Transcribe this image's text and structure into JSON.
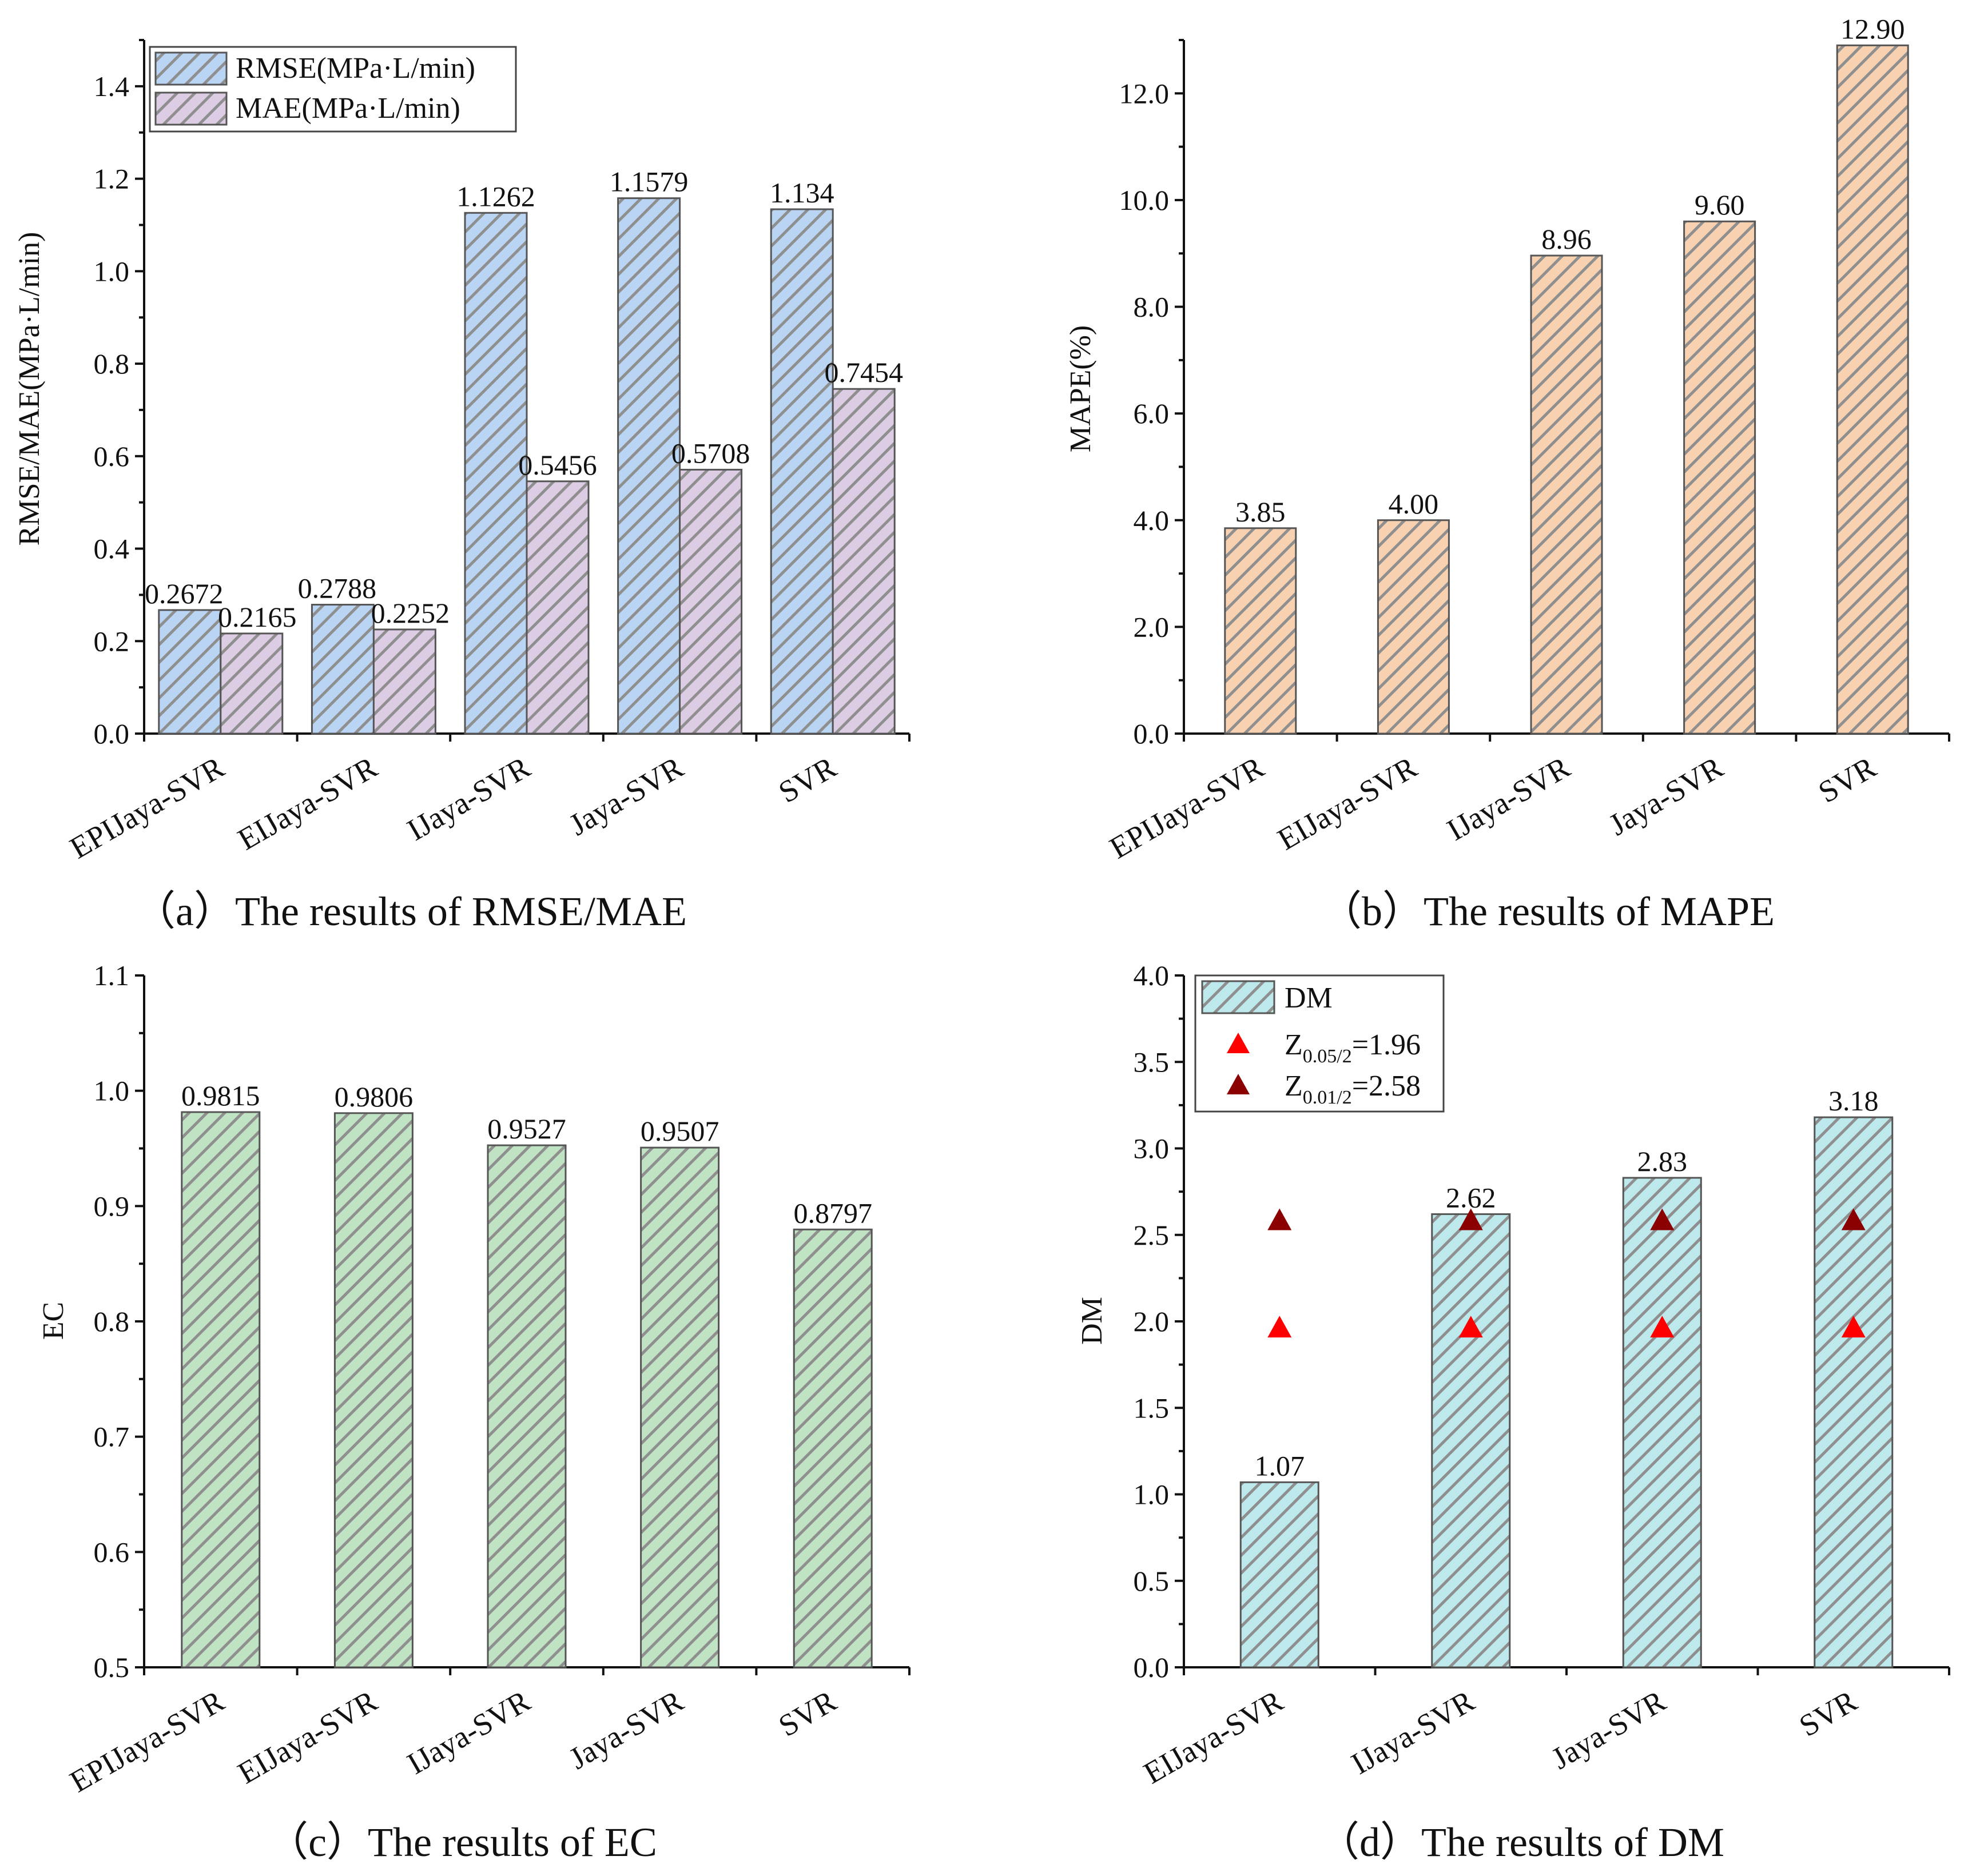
{
  "colors": {
    "rmse": "#bad4f3",
    "mae": "#ddcde4",
    "mape": "#f8d1b1",
    "ec": "#bfe3c3",
    "dm": "#bde9ec",
    "hatch": "#8f8f8f",
    "tri_005": "#ff0000",
    "tri_001": "#8b0000"
  },
  "chart_data": [
    {
      "id": "a",
      "type": "bar",
      "caption": "（a）The results of RMSE/MAE",
      "ylabel": "RMSE/MAE(MPa·L/min)",
      "xlabel": "",
      "ylim": [
        0,
        1.5
      ],
      "yticks": [
        "0.0",
        "0.2",
        "0.4",
        "0.6",
        "0.8",
        "1.0",
        "1.2",
        "1.4"
      ],
      "categories": [
        "EPIJaya-SVR",
        "EIJaya-SVR",
        "IJaya-SVR",
        "Jaya-SVR",
        "SVR"
      ],
      "series": [
        {
          "name": "RMSE(MPa·L/min)",
          "values": [
            0.2672,
            0.2788,
            1.1262,
            1.1579,
            1.134
          ],
          "labels": [
            "0.2672",
            "0.2788",
            "1.1262",
            "1.1579",
            "1.134"
          ]
        },
        {
          "name": "MAE(MPa·L/min)",
          "values": [
            0.2165,
            0.2252,
            0.5456,
            0.5708,
            0.7454
          ],
          "labels": [
            "0.2165",
            "0.2252",
            "0.5456",
            "0.5708",
            "0.7454"
          ]
        }
      ],
      "legend": "top-left",
      "grid": false
    },
    {
      "id": "b",
      "type": "bar",
      "caption": "（b）The results of MAPE",
      "ylabel": "MAPE(%)",
      "xlabel": "",
      "ylim": [
        0,
        13
      ],
      "yticks": [
        "0.0",
        "2.0",
        "4.0",
        "6.0",
        "8.0",
        "10.0",
        "12.0"
      ],
      "categories": [
        "EPIJaya-SVR",
        "EIJaya-SVR",
        "IJaya-SVR",
        "Jaya-SVR",
        "SVR"
      ],
      "series": [
        {
          "name": "MAPE",
          "values": [
            3.85,
            4.0,
            8.96,
            9.6,
            12.9
          ],
          "labels": [
            "3.85",
            "4.00",
            "8.96",
            "9.60",
            "12.90"
          ]
        }
      ],
      "grid": false
    },
    {
      "id": "c",
      "type": "bar",
      "caption": "（c）The results of EC",
      "ylabel": "EC",
      "xlabel": "",
      "ylim": [
        0.5,
        1.1
      ],
      "yticks": [
        "0.5",
        "0.6",
        "0.7",
        "0.8",
        "0.9",
        "1.0",
        "1.1"
      ],
      "categories": [
        "EPIJaya-SVR",
        "EIJaya-SVR",
        "IJaya-SVR",
        "Jaya-SVR",
        "SVR"
      ],
      "series": [
        {
          "name": "EC",
          "values": [
            0.9815,
            0.9806,
            0.9527,
            0.9507,
            0.8797
          ],
          "labels": [
            "0.9815",
            "0.9806",
            "0.9527",
            "0.9507",
            "0.8797"
          ]
        }
      ],
      "grid": false
    },
    {
      "id": "d",
      "type": "bar",
      "caption": "（d）The results of DM",
      "ylabel": "DM",
      "xlabel": "",
      "ylim": [
        0,
        4
      ],
      "yticks": [
        "0.0",
        "0.5",
        "1.0",
        "1.5",
        "2.0",
        "2.5",
        "3.0",
        "3.5",
        "4.0"
      ],
      "categories": [
        "EIJaya-SVR",
        "IJaya-SVR",
        "Jaya-SVR",
        "SVR"
      ],
      "series": [
        {
          "name": "DM",
          "values": [
            1.07,
            2.62,
            2.83,
            3.18
          ],
          "labels": [
            "1.07",
            "2.62",
            "2.83",
            "3.18"
          ]
        }
      ],
      "markers": [
        {
          "name_main": "Z",
          "name_sub": "0.05/2",
          "name_rest": "=1.96",
          "value": 1.96
        },
        {
          "name_main": "Z",
          "name_sub": "0.01/2",
          "name_rest": "=2.58",
          "value": 2.58
        }
      ],
      "legend": "top-left",
      "grid": false
    }
  ]
}
